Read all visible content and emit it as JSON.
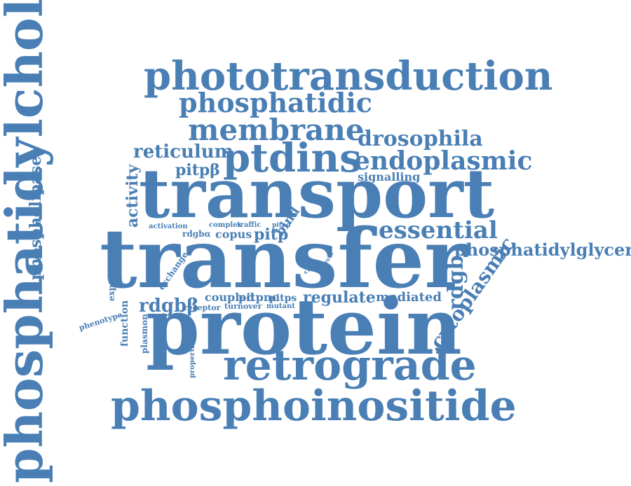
{
  "word_cloud": {
    "color": "#4a7fb5",
    "words": [
      {
        "text": "phosphatidylcholine",
        "rotation": "vertical"
      },
      {
        "text": "phototransduction",
        "rotation": "horizontal"
      },
      {
        "text": "phosphatidic",
        "rotation": "horizontal"
      },
      {
        "text": "membrane",
        "rotation": "horizontal"
      },
      {
        "text": "drosophila",
        "rotation": "horizontal"
      },
      {
        "text": "reticulum",
        "rotation": "horizontal"
      },
      {
        "text": "ptdins",
        "rotation": "horizontal"
      },
      {
        "text": "endoplasmic",
        "rotation": "horizontal"
      },
      {
        "text": "pitpβ",
        "rotation": "horizontal"
      },
      {
        "text": "signalling",
        "rotation": "horizontal"
      },
      {
        "text": "phospholipase",
        "rotation": "vertical"
      },
      {
        "text": "activity",
        "rotation": "vertical"
      },
      {
        "text": "transport",
        "rotation": "horizontal"
      },
      {
        "text": "activation",
        "rotation": "horizontal"
      },
      {
        "text": "complex",
        "rotation": "horizontal"
      },
      {
        "text": "traffic",
        "rotation": "horizontal"
      },
      {
        "text": "pitpd",
        "rotation": "horizontal"
      },
      {
        "text": "rdgbα",
        "rotation": "horizontal"
      },
      {
        "text": "copus",
        "rotation": "horizontal"
      },
      {
        "text": "pitp",
        "rotation": "horizontal"
      },
      {
        "text": "bind",
        "rotation": "angled"
      },
      {
        "text": "essential",
        "rotation": "horizontal"
      },
      {
        "text": "transfer",
        "rotation": "horizontal"
      },
      {
        "text": "phosphatidylglycerol",
        "rotation": "horizontal"
      },
      {
        "text": "expression",
        "rotation": "vertical"
      },
      {
        "text": "exchange",
        "rotation": "angled"
      },
      {
        "text": "class",
        "rotation": "angled"
      },
      {
        "text": "level",
        "rotation": "angled"
      },
      {
        "text": "domain",
        "rotation": "vertical"
      },
      {
        "text": "rdgb",
        "rotation": "vertical"
      },
      {
        "text": "rdgbβ",
        "rotation": "horizontal"
      },
      {
        "text": "coupled",
        "rotation": "horizontal"
      },
      {
        "text": "pitpnc",
        "rotation": "horizontal"
      },
      {
        "text": "pitps",
        "rotation": "horizontal"
      },
      {
        "text": "regulate",
        "rotation": "horizontal"
      },
      {
        "text": "mediated",
        "rotation": "horizontal"
      },
      {
        "text": "receptor",
        "rotation": "horizontal"
      },
      {
        "text": "turnover",
        "rotation": "horizontal"
      },
      {
        "text": "mutant",
        "rotation": "horizontal"
      },
      {
        "text": "function",
        "rotation": "vertical"
      },
      {
        "text": "phenotype",
        "rotation": "angled"
      },
      {
        "text": "plasmon",
        "rotation": "vertical"
      },
      {
        "text": "properties",
        "rotation": "vertical"
      },
      {
        "text": "cytoplasmic",
        "rotation": "angled"
      },
      {
        "text": "protein",
        "rotation": "horizontal"
      },
      {
        "text": "retrograde",
        "rotation": "horizontal"
      },
      {
        "text": "phosphoinositide",
        "rotation": "horizontal"
      }
    ]
  }
}
